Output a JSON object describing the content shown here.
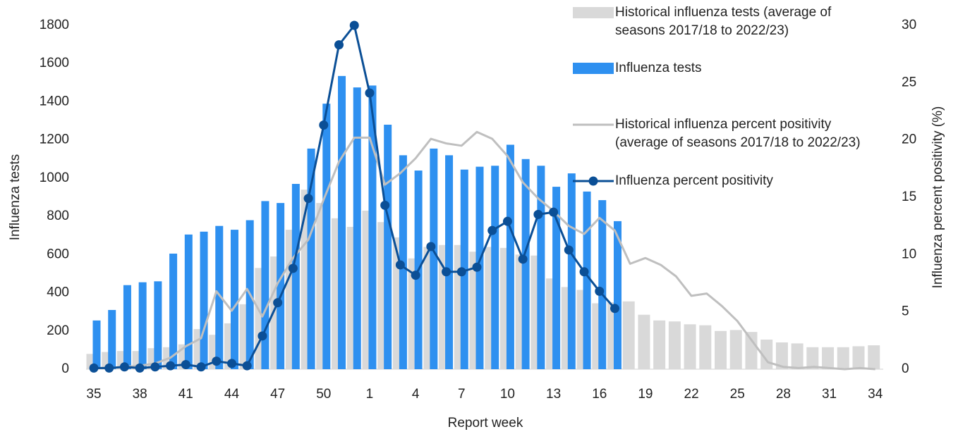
{
  "chart_data": {
    "type": "bar_line",
    "categories": [
      "35",
      null,
      null,
      "38",
      null,
      null,
      "41",
      null,
      null,
      "44",
      null,
      null,
      "47",
      null,
      null,
      "50",
      null,
      null,
      "1",
      null,
      null,
      "4",
      null,
      null,
      "7",
      null,
      null,
      "10",
      null,
      null,
      "13",
      null,
      null,
      "16",
      null,
      null,
      "19",
      null,
      null,
      "22",
      null,
      null,
      "25",
      null,
      null,
      "28",
      null,
      null,
      "31",
      null,
      null,
      "34"
    ],
    "xlabel": "Report week",
    "ylabel": "Influenza tests",
    "y2label": "Influenza percent positivity (%)",
    "ylim": [
      0,
      1800
    ],
    "yticks": [
      0,
      200,
      400,
      600,
      800,
      1000,
      1200,
      1400,
      1600,
      1800
    ],
    "y2lim": [
      0,
      30
    ],
    "y2ticks": [
      0,
      5,
      10,
      15,
      20,
      25,
      30
    ],
    "series": [
      {
        "name": "Historical influenza tests (average of seasons 2017/18 to 2022/23)",
        "kind": "bar",
        "color": "#d9d9d9",
        "values": [
          80,
          90,
          95,
          95,
          110,
          115,
          130,
          210,
          180,
          240,
          340,
          530,
          590,
          730,
          940,
          870,
          790,
          745,
          830,
          770,
          690,
          580,
          640,
          650,
          650,
          615,
          640,
          635,
          600,
          595,
          475,
          430,
          415,
          345,
          350,
          355,
          285,
          255,
          250,
          235,
          230,
          200,
          205,
          195,
          155,
          140,
          135,
          115,
          115,
          115,
          120,
          125
        ]
      },
      {
        "name": "Influenza tests",
        "kind": "bar",
        "color": "#2e90f0",
        "values": [
          255,
          310,
          440,
          455,
          460,
          605,
          705,
          720,
          750,
          730,
          780,
          880,
          870,
          970,
          1155,
          1390,
          1535,
          1475,
          1485,
          1280,
          1120,
          1040,
          1155,
          1120,
          1045,
          1060,
          1065,
          1175,
          1100,
          1065,
          955,
          1025,
          930,
          885,
          775,
          null,
          null,
          null,
          null,
          null,
          null,
          null,
          null,
          null,
          null,
          null,
          null,
          null,
          null,
          null,
          null,
          null
        ]
      },
      {
        "name": "Historical influenza percent positivity (average of seasons 2017/18 to 2022/23)",
        "kind": "line",
        "axis": "y2",
        "color": "#bfbfbf",
        "values": [
          0.1,
          0.1,
          0.2,
          0.3,
          0.5,
          1.0,
          2.0,
          2.7,
          6.8,
          5.1,
          7.0,
          4.6,
          7.5,
          9.7,
          11.3,
          14.8,
          18.1,
          20.2,
          20.2,
          16.1,
          17.1,
          18.4,
          20.1,
          19.7,
          19.5,
          20.7,
          20.1,
          18.6,
          16.3,
          14.9,
          13.8,
          12.5,
          11.8,
          13.2,
          12.1,
          9.2,
          9.7,
          9.1,
          8.1,
          6.4,
          6.6,
          5.5,
          4.2,
          2.4,
          0.6,
          0.2,
          0.1,
          0.2,
          0.1,
          0.0,
          0.1,
          0.0
        ]
      },
      {
        "name": "Influenza percent positivity",
        "kind": "line",
        "axis": "y2",
        "color": "#0b4f96",
        "markers": true,
        "values": [
          0.1,
          0.1,
          0.2,
          0.1,
          0.2,
          0.3,
          0.4,
          0.2,
          0.7,
          0.5,
          0.3,
          2.9,
          5.8,
          8.8,
          14.9,
          21.3,
          28.3,
          30.0,
          24.1,
          14.3,
          9.1,
          8.2,
          10.7,
          8.5,
          8.5,
          8.9,
          12.1,
          12.9,
          9.6,
          13.5,
          13.7,
          10.4,
          8.5,
          6.8,
          5.3,
          null,
          null,
          null,
          null,
          null,
          null,
          null,
          null,
          null,
          null,
          null,
          null,
          null,
          null,
          null,
          null,
          null
        ]
      }
    ]
  }
}
